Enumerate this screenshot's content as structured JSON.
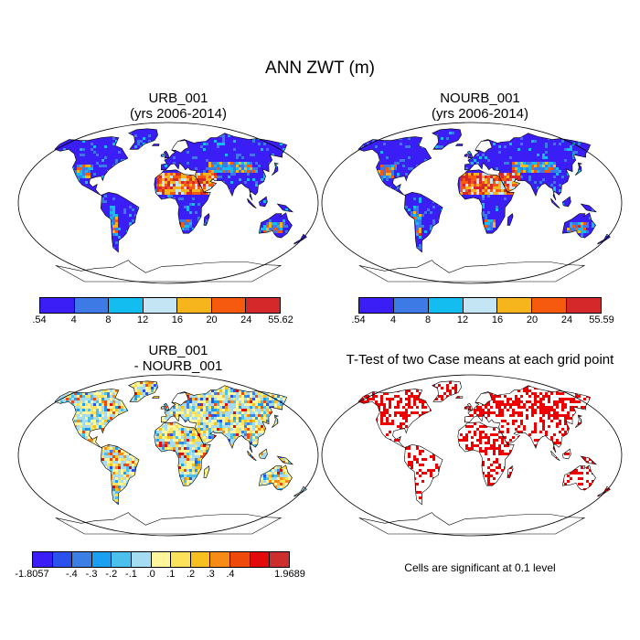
{
  "title": "ANN ZWT (m)",
  "panels": [
    {
      "title_line1": "URB_001",
      "title_line2": "(yrs 2006-2014)"
    },
    {
      "title_line1": "NOURB_001",
      "title_line2": "(yrs 2006-2014)"
    },
    {
      "title_line1": "URB_001",
      "title_line2": "- NOURB_001"
    },
    {
      "title_line1": "T-Test of two Case means at each grid point",
      "title_line2": ""
    }
  ],
  "colorbars": [
    {
      "colors": [
        "#3a1ef5",
        "#3e7ae6",
        "#13bdf0",
        "#c4e6f4",
        "#f6b51c",
        "#f55a0e",
        "#d4282a"
      ],
      "labels": [
        ".54",
        "4",
        "8",
        "12",
        "16",
        "20",
        "24",
        "55.62"
      ]
    },
    {
      "colors": [
        "#3a1ef5",
        "#3e7ae6",
        "#13bdf0",
        "#c4e6f4",
        "#f6b51c",
        "#f55a0e",
        "#d4282a"
      ],
      "labels": [
        ".54",
        "4",
        "8",
        "12",
        "16",
        "20",
        "24",
        "55.59"
      ]
    },
    {
      "colors": [
        "#3a1ef5",
        "#2a50ee",
        "#3b7fe5",
        "#1b9ff0",
        "#4cc0ea",
        "#a6dcf2",
        "#fff59c",
        "#fbe25a",
        "#f7bf1f",
        "#f68c17",
        "#f0490c",
        "#e20a0a",
        "#cc2d2d"
      ],
      "labels": [
        "-1.8057",
        "-.4",
        "-.3",
        "-.2",
        "-.1",
        ".0",
        ".1",
        ".2",
        ".3",
        ".4",
        "1.9689"
      ],
      "label_positions": [
        0,
        2,
        3,
        4,
        5,
        6,
        7,
        8,
        9,
        10,
        13
      ]
    }
  ],
  "note": "Cells are significant at 0.1 level",
  "colors": {
    "ocean": "#ffffff",
    "coast": "#000000",
    "significant": "#ee0000"
  }
}
